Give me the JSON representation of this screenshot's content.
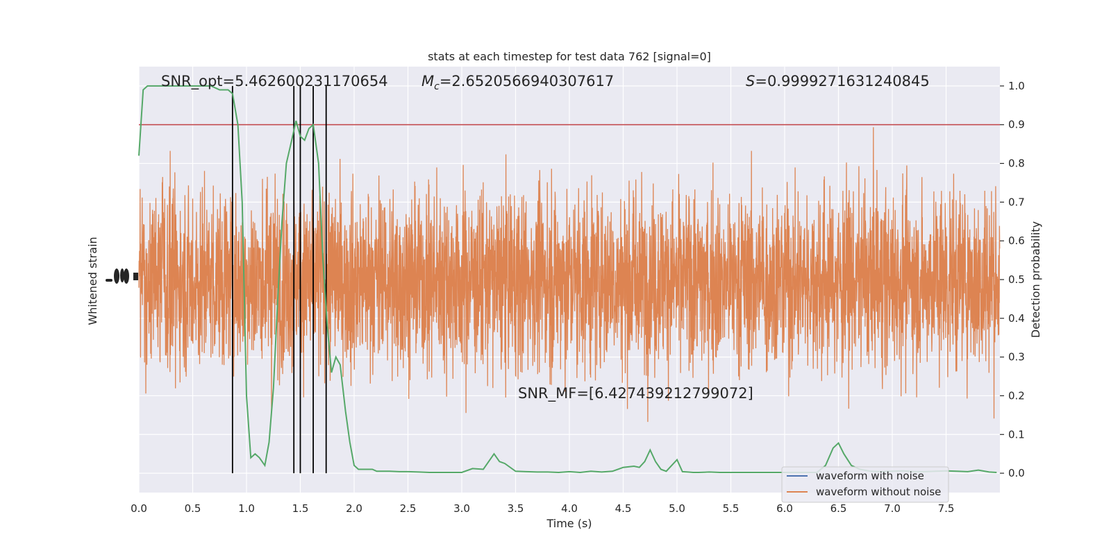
{
  "chart_data": {
    "type": "line",
    "title": "stats at each timestep for test data 762 [signal=0]",
    "xlabel": "Time (s)",
    "ylabel_left": "Whitened strain",
    "ylabel_right": "Detection probability",
    "xlim": [
      0.0,
      8.0
    ],
    "ylim_right": [
      -0.05,
      1.05
    ],
    "x_ticks": [
      "0.0",
      "0.5",
      "1.0",
      "1.5",
      "2.0",
      "2.5",
      "3.0",
      "3.5",
      "4.0",
      "4.5",
      "5.0",
      "5.5",
      "6.0",
      "6.5",
      "7.0",
      "7.5"
    ],
    "y_ticks_right": [
      "0.0",
      "0.1",
      "0.2",
      "0.3",
      "0.4",
      "0.5",
      "0.6",
      "0.7",
      "0.8",
      "0.9",
      "1.0"
    ],
    "grid": true,
    "threshold": 0.9,
    "vertical_lines_x": [
      0.87,
      1.44,
      1.5,
      1.62,
      1.74
    ],
    "annotations": {
      "snr_opt": "SNR_opt=5.462600231170654",
      "mc_symbol": "M",
      "mc_sub": "c",
      "mc_value": "=2.6520566940307617",
      "s_symbol": "S",
      "s_value": "=0.9999271631240845",
      "snr_mf": "SNR_MF=[6.427439212799072]"
    },
    "legend": {
      "position": "lower-right",
      "entries": [
        "waveform with noise",
        "waveform without noise"
      ]
    },
    "colors": {
      "background": "#eaeaf2",
      "grid": "#ffffff",
      "waveform_with_noise": "#4c72b0",
      "waveform_without_noise": "#dd8452",
      "probability": "#55a868",
      "threshold": "#c44e52",
      "vlines": "#000000"
    },
    "detection_probability": {
      "x": [
        0.0,
        0.04,
        0.08,
        0.12,
        0.17,
        0.25,
        0.33,
        0.42,
        0.5,
        0.58,
        0.67,
        0.75,
        0.83,
        0.87,
        0.92,
        0.96,
        1.0,
        1.04,
        1.08,
        1.12,
        1.17,
        1.21,
        1.25,
        1.29,
        1.33,
        1.37,
        1.42,
        1.46,
        1.5,
        1.54,
        1.58,
        1.62,
        1.67,
        1.71,
        1.75,
        1.79,
        1.83,
        1.87,
        1.92,
        1.96,
        2.0,
        2.04,
        2.08,
        2.12,
        2.17,
        2.21,
        2.25,
        2.33,
        2.42,
        2.5,
        2.6,
        2.7,
        2.8,
        2.9,
        3.0,
        3.1,
        3.2,
        3.3,
        3.35,
        3.4,
        3.5,
        3.6,
        3.7,
        3.8,
        3.9,
        4.0,
        4.1,
        4.2,
        4.3,
        4.4,
        4.5,
        4.6,
        4.65,
        4.7,
        4.75,
        4.8,
        4.85,
        4.9,
        4.95,
        5.0,
        5.05,
        5.1,
        5.15,
        5.2,
        5.3,
        5.4,
        5.5,
        5.6,
        5.7,
        5.8,
        5.9,
        6.0,
        6.1,
        6.2,
        6.3,
        6.38,
        6.45,
        6.5,
        6.55,
        6.62,
        6.7,
        6.8,
        6.9,
        7.0,
        7.1,
        7.2,
        7.3,
        7.4,
        7.5,
        7.6,
        7.7,
        7.8,
        7.9,
        7.97
      ],
      "y": [
        0.82,
        0.99,
        1.0,
        1.0,
        1.0,
        1.0,
        1.0,
        1.0,
        1.0,
        1.0,
        1.0,
        0.99,
        0.99,
        0.98,
        0.9,
        0.7,
        0.2,
        0.04,
        0.05,
        0.04,
        0.02,
        0.08,
        0.22,
        0.45,
        0.65,
        0.8,
        0.86,
        0.91,
        0.87,
        0.86,
        0.89,
        0.9,
        0.8,
        0.55,
        0.38,
        0.26,
        0.3,
        0.28,
        0.16,
        0.08,
        0.02,
        0.01,
        0.01,
        0.01,
        0.01,
        0.005,
        0.005,
        0.005,
        0.004,
        0.004,
        0.003,
        0.002,
        0.002,
        0.002,
        0.002,
        0.012,
        0.01,
        0.05,
        0.03,
        0.025,
        0.005,
        0.004,
        0.003,
        0.003,
        0.002,
        0.004,
        0.002,
        0.005,
        0.003,
        0.005,
        0.015,
        0.018,
        0.015,
        0.03,
        0.06,
        0.03,
        0.01,
        0.005,
        0.02,
        0.035,
        0.004,
        0.003,
        0.002,
        0.002,
        0.003,
        0.002,
        0.002,
        0.002,
        0.002,
        0.002,
        0.002,
        0.002,
        0.002,
        0.002,
        0.002,
        0.02,
        0.065,
        0.078,
        0.05,
        0.02,
        0.01,
        0.005,
        0.004,
        0.005,
        0.006,
        0.004,
        0.004,
        0.005,
        0.006,
        0.005,
        0.004,
        0.008,
        0.003,
        0.002
      ]
    },
    "waveform_without_noise": {
      "description_range_right_axis": [
        0.23,
        0.86
      ],
      "sample_rate_per_s": 512
    }
  }
}
